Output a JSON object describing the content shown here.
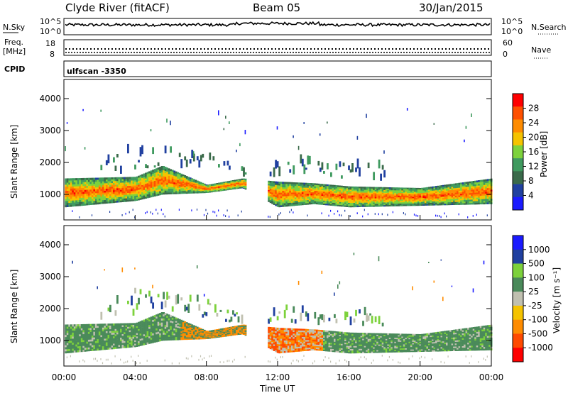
{
  "header": {
    "station": "Clyde River (fitACF)",
    "beam": "Beam 05",
    "date": "30/Jan/2015"
  },
  "noise_panel": {
    "left_label": "N.Sky",
    "right_label": "N.Search",
    "right_top_tick": "10^5",
    "right_bottom_tick": "10^0",
    "left_top_tick": "10^5",
    "left_bottom_tick": "10^0"
  },
  "freq_panel": {
    "left_label_line1": "Freq.",
    "left_label_line2": "[MHz]",
    "left_top_tick": "18",
    "left_bottom_tick": "8",
    "right_label": "Nave",
    "right_top_tick": "60",
    "right_bottom_tick": "0"
  },
  "cpid_panel": {
    "label": "CPID",
    "value": "ulfscan -3350"
  },
  "x_axis": {
    "label": "Time UT",
    "ticks": [
      "00:00",
      "04:00",
      "08:00",
      "12:00",
      "16:00",
      "20:00",
      "00:00"
    ]
  },
  "colors": {
    "power_scale": [
      "#1a1aff",
      "#2040a0",
      "#3a6a4a",
      "#3f9a5f",
      "#7dd23c",
      "#f5c300",
      "#ff8c00",
      "#ff5000",
      "#ff0000"
    ],
    "velocity_scale": [
      "#ff0000",
      "#ff4a00",
      "#ff8c00",
      "#f5c300",
      "#c0c0b0",
      "#4a8a5a",
      "#7dd23c",
      "#2040a0",
      "#1a1aff"
    ]
  },
  "chart_data": [
    {
      "type": "heatmap",
      "title": "",
      "quantity": "Power",
      "xlabel": "Time UT",
      "ylabel": "Slant Range [km]",
      "colorbar_label": "Power [dB]",
      "colorbar_ticks": [
        "4",
        "8",
        "12",
        "16",
        "20",
        "24",
        "28"
      ],
      "y_ticks": [
        "1000",
        "2000",
        "3000",
        "4000"
      ],
      "xlim": [
        0,
        24
      ],
      "ylim": [
        200,
        4600
      ],
      "grid": false,
      "legend": "colorbar-right",
      "bands": [
        {
          "name": "main",
          "x": [
            0,
            4,
            5.5,
            8,
            10,
            12,
            14,
            16,
            20,
            24
          ],
          "y_low": [
            600,
            800,
            1000,
            1050,
            1200,
            600,
            700,
            600,
            650,
            700
          ],
          "y_high": [
            1500,
            1550,
            1900,
            1300,
            1500,
            1400,
            1350,
            1250,
            1200,
            1500
          ],
          "level": "28"
        },
        {
          "name": "upper",
          "x": [
            2,
            4,
            6,
            8,
            10,
            13,
            18
          ],
          "y_low": [
            1500,
            1700,
            1900,
            1600,
            1500,
            1500,
            1400
          ],
          "y_high": [
            2200,
            2500,
            2300,
            2200,
            1800,
            2000,
            1800
          ],
          "level": "8"
        }
      ]
    },
    {
      "type": "heatmap",
      "title": "",
      "quantity": "Velocity",
      "xlabel": "Time UT",
      "ylabel": "Slant Range [km]",
      "colorbar_label": "Velocity [m s⁻¹]",
      "colorbar_ticks": [
        "1000",
        "500",
        "100",
        "25",
        "-25",
        "-100",
        "-500",
        "-1000"
      ],
      "y_ticks": [
        "1000",
        "2000",
        "3000",
        "4000"
      ],
      "xlim": [
        0,
        24
      ],
      "ylim": [
        200,
        4600
      ],
      "grid": false,
      "legend": "colorbar-right"
    }
  ]
}
